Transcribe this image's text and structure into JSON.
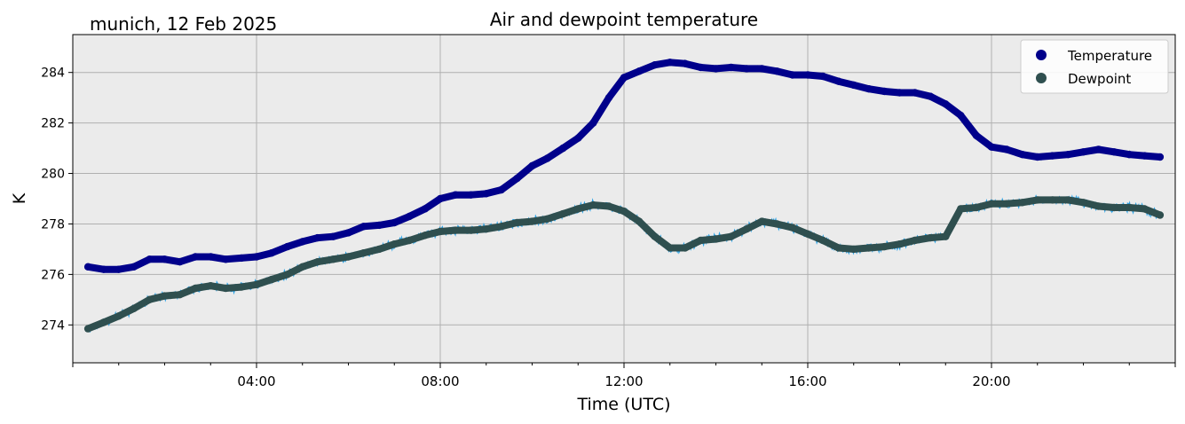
{
  "chart_data": {
    "type": "line",
    "title": "Air and dewpoint temperature",
    "subtitle": "munich, 12 Feb 2025",
    "xlabel": "Time (UTC)",
    "ylabel": "K",
    "xlim_hours": [
      0,
      24
    ],
    "ylim": [
      272.5,
      285.5
    ],
    "x_ticks": [
      {
        "hour": 4,
        "label": "04:00"
      },
      {
        "hour": 8,
        "label": "08:00"
      },
      {
        "hour": 12,
        "label": "12:00"
      },
      {
        "hour": 16,
        "label": "16:00"
      },
      {
        "hour": 20,
        "label": "20:00"
      }
    ],
    "y_ticks": [
      274,
      276,
      278,
      280,
      282,
      284
    ],
    "grid": true,
    "legend_position": "top-right",
    "colors": {
      "background": "#ebebeb",
      "grid": "#b0b0b0",
      "temperature": "#00008b",
      "dewpoint": "#2f4f4f",
      "temperature_raw": "#7fa89a",
      "dewpoint_raw": "#29a3e8"
    },
    "series": [
      {
        "name": "Temperature",
        "marker": "circle",
        "points": [
          [
            0.33,
            276.3
          ],
          [
            0.67,
            276.2
          ],
          [
            1.0,
            276.2
          ],
          [
            1.33,
            276.3
          ],
          [
            1.67,
            276.6
          ],
          [
            2.0,
            276.6
          ],
          [
            2.33,
            276.5
          ],
          [
            2.67,
            276.7
          ],
          [
            3.0,
            276.7
          ],
          [
            3.33,
            276.6
          ],
          [
            3.67,
            276.65
          ],
          [
            4.0,
            276.7
          ],
          [
            4.33,
            276.85
          ],
          [
            4.67,
            277.1
          ],
          [
            5.0,
            277.3
          ],
          [
            5.33,
            277.45
          ],
          [
            5.67,
            277.5
          ],
          [
            6.0,
            277.65
          ],
          [
            6.33,
            277.9
          ],
          [
            6.67,
            277.95
          ],
          [
            7.0,
            278.05
          ],
          [
            7.33,
            278.3
          ],
          [
            7.67,
            278.6
          ],
          [
            8.0,
            279.0
          ],
          [
            8.33,
            279.15
          ],
          [
            8.67,
            279.15
          ],
          [
            9.0,
            279.2
          ],
          [
            9.33,
            279.35
          ],
          [
            9.67,
            279.8
          ],
          [
            10.0,
            280.3
          ],
          [
            10.33,
            280.6
          ],
          [
            10.67,
            281.0
          ],
          [
            11.0,
            281.4
          ],
          [
            11.33,
            282.0
          ],
          [
            11.67,
            283.0
          ],
          [
            12.0,
            283.8
          ],
          [
            12.33,
            284.05
          ],
          [
            12.67,
            284.3
          ],
          [
            13.0,
            284.4
          ],
          [
            13.33,
            284.35
          ],
          [
            13.67,
            284.2
          ],
          [
            14.0,
            284.15
          ],
          [
            14.33,
            284.2
          ],
          [
            14.67,
            284.15
          ],
          [
            15.0,
            284.15
          ],
          [
            15.33,
            284.05
          ],
          [
            15.67,
            283.9
          ],
          [
            16.0,
            283.9
          ],
          [
            16.33,
            283.85
          ],
          [
            16.67,
            283.65
          ],
          [
            17.0,
            283.5
          ],
          [
            17.33,
            283.35
          ],
          [
            17.67,
            283.25
          ],
          [
            18.0,
            283.2
          ],
          [
            18.33,
            283.2
          ],
          [
            18.67,
            283.05
          ],
          [
            19.0,
            282.75
          ],
          [
            19.33,
            282.3
          ],
          [
            19.67,
            281.5
          ],
          [
            20.0,
            281.05
          ],
          [
            20.33,
            280.95
          ],
          [
            20.67,
            280.75
          ],
          [
            21.0,
            280.65
          ],
          [
            21.33,
            280.7
          ],
          [
            21.67,
            280.75
          ],
          [
            22.0,
            280.85
          ],
          [
            22.33,
            280.95
          ],
          [
            22.67,
            280.85
          ],
          [
            23.0,
            280.75
          ],
          [
            23.33,
            280.7
          ],
          [
            23.67,
            280.65
          ]
        ]
      },
      {
        "name": "Dewpoint",
        "marker": "circle",
        "points": [
          [
            0.33,
            273.85
          ],
          [
            0.67,
            274.1
          ],
          [
            1.0,
            274.35
          ],
          [
            1.33,
            274.65
          ],
          [
            1.67,
            275.0
          ],
          [
            2.0,
            275.15
          ],
          [
            2.33,
            275.2
          ],
          [
            2.67,
            275.45
          ],
          [
            3.0,
            275.55
          ],
          [
            3.33,
            275.45
          ],
          [
            3.67,
            275.5
          ],
          [
            4.0,
            275.6
          ],
          [
            4.33,
            275.8
          ],
          [
            4.67,
            276.0
          ],
          [
            5.0,
            276.3
          ],
          [
            5.33,
            276.5
          ],
          [
            5.67,
            276.6
          ],
          [
            6.0,
            276.7
          ],
          [
            6.33,
            276.85
          ],
          [
            6.67,
            277.0
          ],
          [
            7.0,
            277.2
          ],
          [
            7.33,
            277.35
          ],
          [
            7.67,
            277.55
          ],
          [
            8.0,
            277.7
          ],
          [
            8.33,
            277.75
          ],
          [
            8.67,
            277.75
          ],
          [
            9.0,
            277.8
          ],
          [
            9.33,
            277.9
          ],
          [
            9.67,
            278.05
          ],
          [
            10.0,
            278.1
          ],
          [
            10.33,
            278.2
          ],
          [
            10.67,
            278.4
          ],
          [
            11.0,
            278.6
          ],
          [
            11.33,
            278.75
          ],
          [
            11.67,
            278.7
          ],
          [
            12.0,
            278.5
          ],
          [
            12.33,
            278.1
          ],
          [
            12.67,
            277.5
          ],
          [
            13.0,
            277.05
          ],
          [
            13.33,
            277.05
          ],
          [
            13.67,
            277.35
          ],
          [
            14.0,
            277.4
          ],
          [
            14.33,
            277.5
          ],
          [
            14.67,
            277.8
          ],
          [
            15.0,
            278.1
          ],
          [
            15.33,
            278.0
          ],
          [
            15.67,
            277.85
          ],
          [
            16.0,
            277.6
          ],
          [
            16.33,
            277.35
          ],
          [
            16.67,
            277.05
          ],
          [
            17.0,
            277.0
          ],
          [
            17.33,
            277.05
          ],
          [
            17.67,
            277.1
          ],
          [
            18.0,
            277.2
          ],
          [
            18.33,
            277.35
          ],
          [
            18.67,
            277.45
          ],
          [
            19.0,
            277.5
          ],
          [
            19.33,
            278.6
          ],
          [
            19.67,
            278.65
          ],
          [
            20.0,
            278.8
          ],
          [
            20.33,
            278.8
          ],
          [
            20.67,
            278.85
          ],
          [
            21.0,
            278.95
          ],
          [
            21.33,
            278.95
          ],
          [
            21.67,
            278.95
          ],
          [
            22.0,
            278.85
          ],
          [
            22.33,
            278.7
          ],
          [
            22.67,
            278.65
          ],
          [
            23.0,
            278.65
          ],
          [
            23.33,
            278.6
          ],
          [
            23.67,
            278.35
          ]
        ]
      }
    ]
  }
}
